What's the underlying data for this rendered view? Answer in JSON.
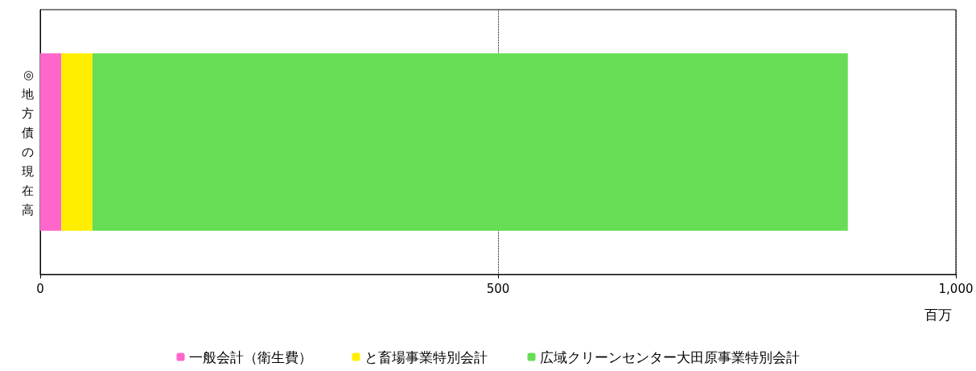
{
  "chart_data": {
    "type": "bar",
    "orientation": "horizontal",
    "stacked": true,
    "categories": [
      "◎地方債の現在高"
    ],
    "xlabel": "百万",
    "series": [
      {
        "name": "一般会計（衛生費）",
        "color": "#ff66cc",
        "values": [
          23
        ]
      },
      {
        "name": "と畜場事業特別会計",
        "color": "#ffee00",
        "values": [
          34
        ]
      },
      {
        "name": "広域クリーンセンター大田原事業特別会計",
        "color": "#66dd55",
        "values": [
          825
        ]
      }
    ],
    "xlim": [
      0,
      1000
    ],
    "xticks": [
      0,
      500,
      {
        "value": 1000,
        "label": "1,000"
      }
    ],
    "grid": "x",
    "legend": "bottom"
  }
}
